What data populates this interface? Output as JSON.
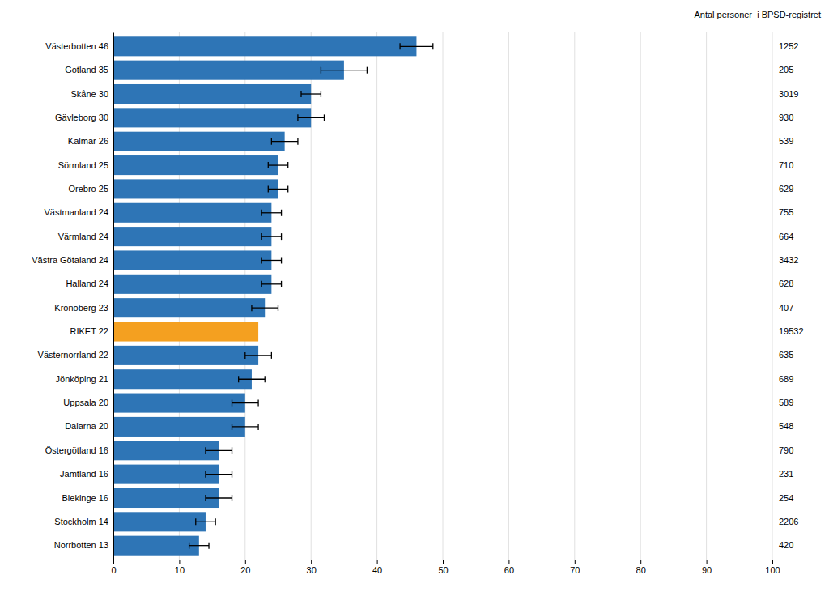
{
  "chart_data": {
    "type": "bar",
    "orientation": "horizontal",
    "categories": [
      "Norrbotten 13",
      "Stockholm 14",
      "Blekinge 16",
      "Jämtland 16",
      "Östergötland 16",
      "Dalarna 20",
      "Uppsala 20",
      "Jönköping 21",
      "Västernorrland 22",
      "RIKET 22",
      "Kronoberg 23",
      "Halland 24",
      "Västra Götaland 24",
      "Värmland 24",
      "Västmanland 24",
      "Örebro 25",
      "Sörmland 25",
      "Kalmar 26",
      "Gävleborg 30",
      "Skåne 30",
      "Gotland 35",
      "Västerbotten 46"
    ],
    "values": [
      13,
      14,
      16,
      16,
      16,
      20,
      20,
      21,
      22,
      22,
      23,
      24,
      24,
      24,
      24,
      25,
      25,
      26,
      30,
      30,
      35,
      46
    ],
    "error_low": [
      1.5,
      1.5,
      2.0,
      2.0,
      2.0,
      2.0,
      2.0,
      2.0,
      2.0,
      0,
      2.0,
      1.5,
      1.5,
      1.5,
      1.5,
      1.5,
      1.5,
      2.0,
      2.0,
      1.5,
      3.5,
      2.5
    ],
    "error_high": [
      1.5,
      1.5,
      2.0,
      2.0,
      2.0,
      2.0,
      2.0,
      2.0,
      2.0,
      0,
      2.0,
      1.5,
      1.5,
      1.5,
      1.5,
      1.5,
      1.5,
      2.0,
      2.0,
      1.5,
      3.5,
      2.5
    ],
    "right_labels": [
      "420",
      "2206",
      "254",
      "231",
      "790",
      "548",
      "589",
      "689",
      "635",
      "19532",
      "407",
      "628",
      "3432",
      "664",
      "755",
      "629",
      "710",
      "539",
      "930",
      "3019",
      "205",
      "1252"
    ],
    "right_axis_label": "Antal personer  i BPSD-registret",
    "colors": [
      "#2e75b6",
      "#2e75b6",
      "#2e75b6",
      "#2e75b6",
      "#2e75b6",
      "#2e75b6",
      "#2e75b6",
      "#2e75b6",
      "#2e75b6",
      "#f4a020",
      "#2e75b6",
      "#2e75b6",
      "#2e75b6",
      "#2e75b6",
      "#2e75b6",
      "#2e75b6",
      "#2e75b6",
      "#2e75b6",
      "#2e75b6",
      "#2e75b6",
      "#2e75b6",
      "#2e75b6"
    ],
    "xlim": [
      0,
      100
    ],
    "xticks": [
      0,
      10,
      20,
      30,
      40,
      50,
      60,
      70,
      80,
      90,
      100
    ],
    "grid": true
  }
}
